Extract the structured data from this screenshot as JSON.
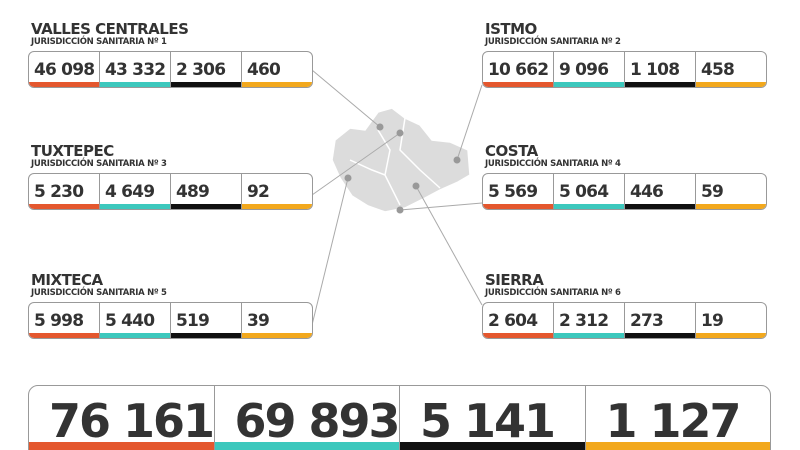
{
  "regions": [
    {
      "name": "VALLES CENTRALES",
      "subtitle": "JURISDICCIÓN SANITARIA Nº 1",
      "values": [
        "46 098",
        "43 332",
        "2 306",
        "460"
      ]
    },
    {
      "name": "ISTMO",
      "subtitle": "JURISDICCIÓN SANITARIA Nº 2",
      "values": [
        "10 662",
        "9 096",
        "1 108",
        "458"
      ]
    },
    {
      "name": "TUXTEPEC",
      "subtitle": "JURISDICCIÓN SANITARIA Nº 3",
      "values": [
        "5 230",
        "4 649",
        "489",
        "92"
      ]
    },
    {
      "name": "COSTA",
      "subtitle": "JURISDICCIÓN SANITARIA Nº 4",
      "values": [
        "5 569",
        "5 064",
        "446",
        "59"
      ]
    },
    {
      "name": "MIXTECA",
      "subtitle": "JURISDICCIÓN SANITARIA Nº 5",
      "values": [
        "5 998",
        "5 440",
        "519",
        "39"
      ]
    },
    {
      "name": "SIERRA",
      "subtitle": "JURISDICCIÓN SANITARIA Nº 6",
      "values": [
        "2 604",
        "2 312",
        "273",
        "19"
      ]
    }
  ],
  "totals": [
    "76 161",
    "69 893",
    "5 141",
    "1 127"
  ]
}
